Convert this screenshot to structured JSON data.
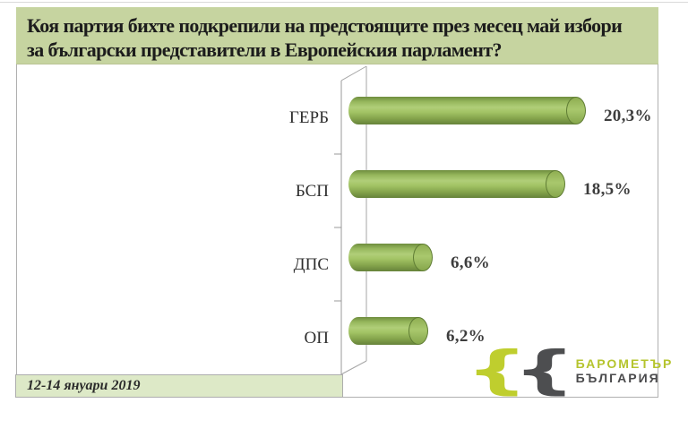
{
  "title": {
    "line1": "Коя партия бихте подкрепили на предстоящите през месец май избори",
    "line2": "за български представители в Европейския парламент?"
  },
  "footer": {
    "date_label": "12-14 януари 2019"
  },
  "logo": {
    "brace_left": "{",
    "brace_right": "{",
    "brand_line1": "БАРОМЕТЪР",
    "brand_line2": "БЪЛГАРИЯ",
    "accent_color": "#b5c42d",
    "dark_color": "#4a4a4c"
  },
  "colors": {
    "title_background": "#c6d4a0",
    "strip_background": "#dde9c7",
    "bar_green": "#9abd55",
    "border_gray": "#b0b0b0",
    "axis_gray": "#999999"
  },
  "chart_data": {
    "type": "bar",
    "orientation": "horizontal",
    "style": "3d-cylinder",
    "title": "Коя партия бихте подкрепили на предстоящите през месец май избори за български представители в Европейския парламент?",
    "categories": [
      "ГЕРБ",
      "БСП",
      "ДПС",
      "ОП"
    ],
    "values": [
      20.3,
      18.5,
      6.6,
      6.2
    ],
    "value_labels": [
      "20,3%",
      "18,5%",
      "6,6%",
      "6,2%"
    ],
    "unit": "%",
    "xlabel": "",
    "ylabel": "",
    "xlim": [
      0,
      24
    ],
    "grid": false,
    "legend": false
  }
}
